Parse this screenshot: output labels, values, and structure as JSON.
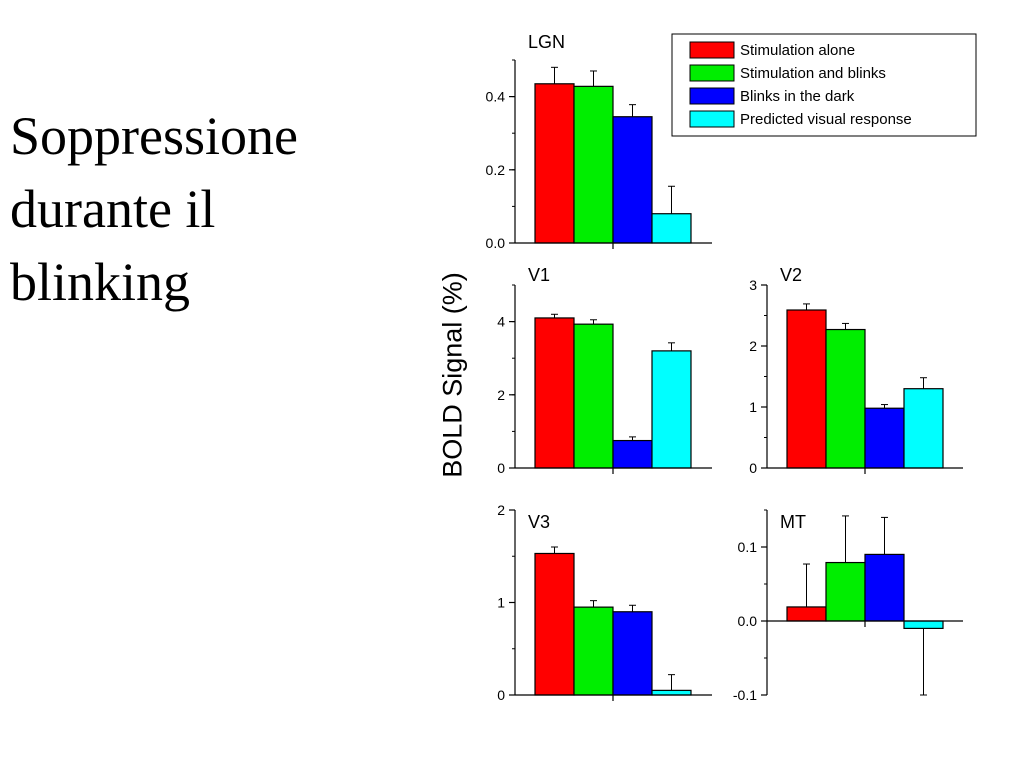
{
  "slide": {
    "title_lines": [
      "Soppressione",
      "durante il",
      "blinking"
    ]
  },
  "colors": {
    "Stimulation alone": "#ff0000",
    "Stimulation and blinks": "#00ee00",
    "Blinks in the dark": "#0000ff",
    "Predicted visual response": "#00ffff"
  },
  "shared_ylabel": "BOLD Signal (%)",
  "legend": {
    "placement": "top-right",
    "entries": [
      "Stimulation alone",
      "Stimulation and blinks",
      "Blinks in the dark",
      "Predicted visual response"
    ]
  },
  "chart_data": [
    {
      "type": "bar",
      "title": "LGN",
      "categories": [
        "Stimulation alone",
        "Stimulation and blinks",
        "Blinks in the dark",
        "Predicted visual response"
      ],
      "values": [
        0.435,
        0.428,
        0.345,
        0.08
      ],
      "errors": [
        0.045,
        0.042,
        0.033,
        0.075
      ],
      "ylim": [
        0,
        0.5
      ],
      "yticks": [
        "0.0",
        "0.2",
        "0.4"
      ],
      "ytick_values": [
        0,
        0.2,
        0.4
      ],
      "yminor": 0.1
    },
    {
      "type": "bar",
      "title": "V1",
      "categories": [
        "Stimulation alone",
        "Stimulation and blinks",
        "Blinks in the dark",
        "Predicted visual response"
      ],
      "values": [
        4.1,
        3.93,
        0.75,
        3.2
      ],
      "errors": [
        0.1,
        0.12,
        0.1,
        0.22
      ],
      "ylim": [
        0,
        5
      ],
      "yticks": [
        "0",
        "2",
        "4"
      ],
      "ytick_values": [
        0,
        2,
        4
      ],
      "yminor": 1
    },
    {
      "type": "bar",
      "title": "V2",
      "categories": [
        "Stimulation alone",
        "Stimulation and blinks",
        "Blinks in the dark",
        "Predicted visual response"
      ],
      "values": [
        2.59,
        2.27,
        0.98,
        1.3
      ],
      "errors": [
        0.1,
        0.1,
        0.06,
        0.18
      ],
      "ylim": [
        0,
        3
      ],
      "yticks": [
        "0",
        "1",
        "2",
        "3"
      ],
      "ytick_values": [
        0,
        1,
        2,
        3
      ],
      "yminor": 0.5
    },
    {
      "type": "bar",
      "title": "V3",
      "categories": [
        "Stimulation alone",
        "Stimulation and blinks",
        "Blinks in the dark",
        "Predicted visual response"
      ],
      "values": [
        1.53,
        0.95,
        0.9,
        0.05
      ],
      "errors": [
        0.07,
        0.07,
        0.07,
        0.17
      ],
      "ylim": [
        0,
        2
      ],
      "yticks": [
        "0",
        "1",
        "2"
      ],
      "ytick_values": [
        0,
        1,
        2
      ],
      "yminor": 0.5
    },
    {
      "type": "bar",
      "title": "MT",
      "categories": [
        "Stimulation alone",
        "Stimulation and blinks",
        "Blinks in the dark",
        "Predicted visual response"
      ],
      "values": [
        0.019,
        0.079,
        0.09,
        -0.01
      ],
      "errors": [
        0.058,
        0.063,
        0.05,
        0.09
      ],
      "ylim": [
        -0.1,
        0.15
      ],
      "yticks": [
        "-0.1",
        "0.0",
        "0.1"
      ],
      "ytick_values": [
        -0.1,
        0,
        0.1
      ],
      "yminor": 0.05
    }
  ]
}
